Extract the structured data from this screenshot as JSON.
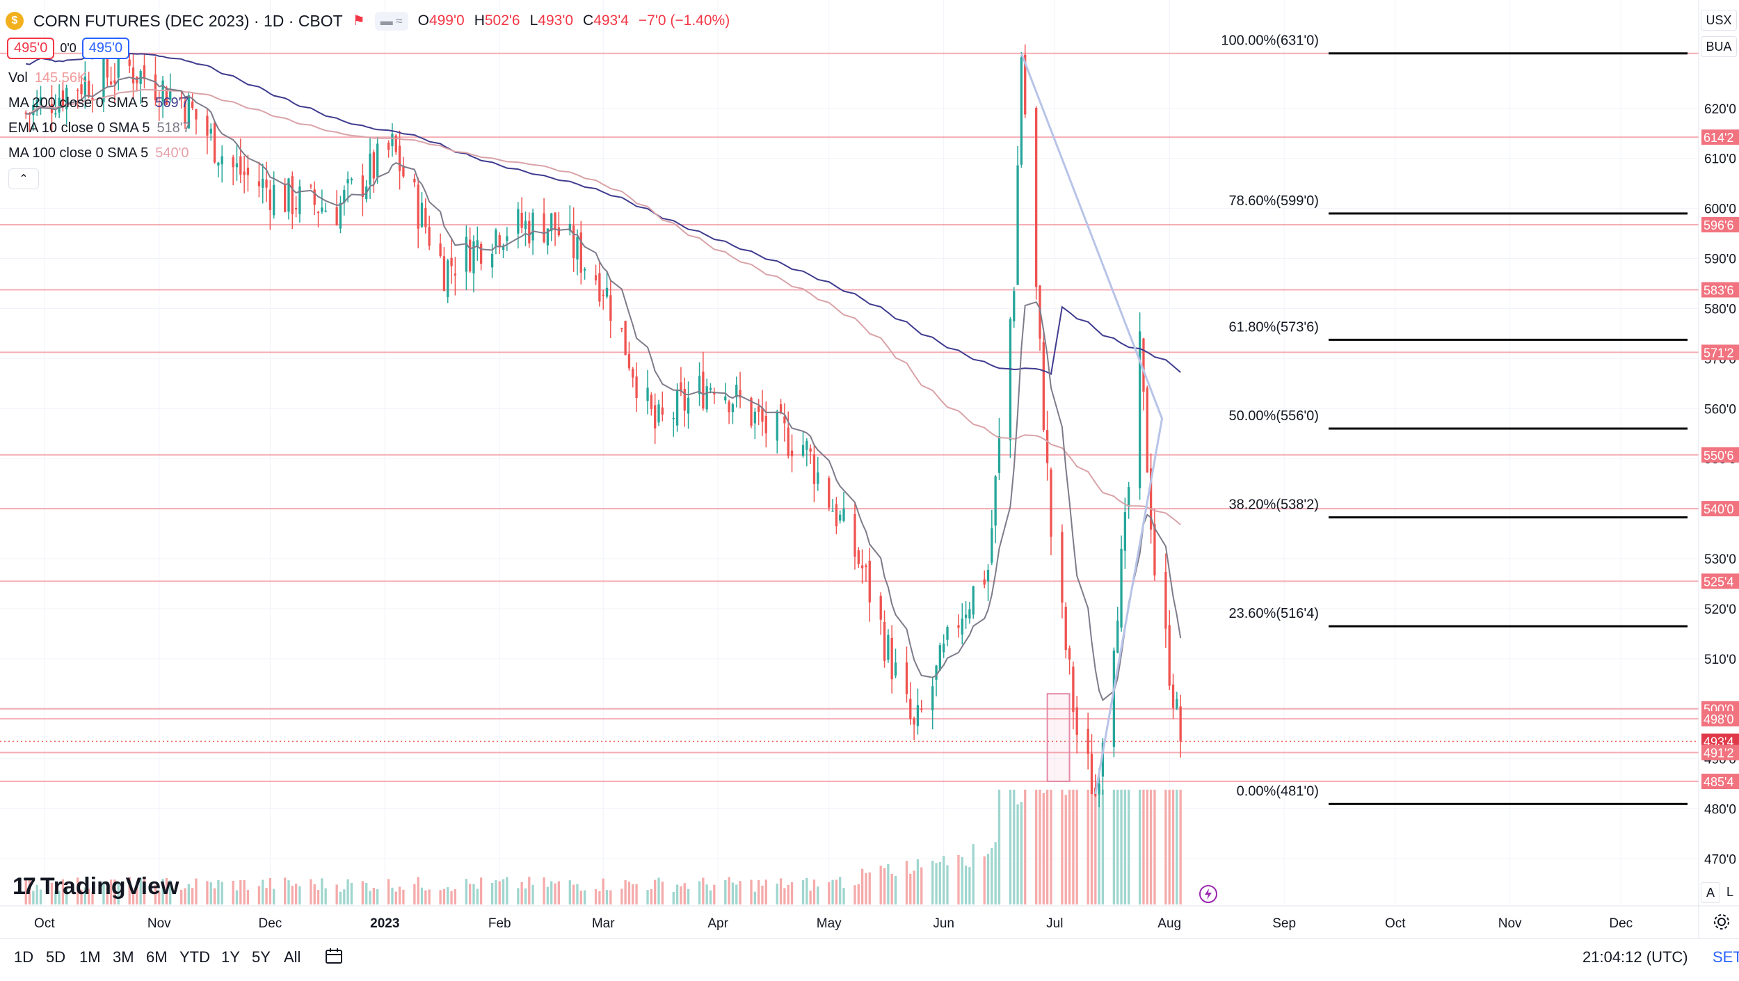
{
  "header": {
    "coin_glyph": "$",
    "symbol": "CORN FUTURES (DEC 2023) · 1D · CBOT",
    "ohlc": [
      {
        "k": "O",
        "v": "499'0"
      },
      {
        "k": "H",
        "v": "502'6"
      },
      {
        "k": "L",
        "v": "493'0"
      },
      {
        "k": "C",
        "v": "493'4"
      },
      {
        "k": "",
        "v": "−7'0 (−1.40%)"
      }
    ],
    "sell_price": "495'0",
    "spread": "0'0",
    "buy_price": "495'0"
  },
  "indicators": [
    {
      "label": "Vol",
      "value": "145.56K",
      "color": "#ef9a9a"
    },
    {
      "label": "MA 200 close 0 SMA 5",
      "value": "569'7",
      "color": "#3f3c8f"
    },
    {
      "label": "EMA 10 close 0 SMA 5",
      "value": "518'7",
      "color": "#7e7b8a"
    },
    {
      "label": "MA 100 close 0 SMA 5",
      "value": "540'0",
      "color": "#e6a0a8"
    }
  ],
  "brand": {
    "mark": "17",
    "name": "TradingView"
  },
  "bottom_bar": {
    "timeframes": [
      "1D",
      "5D",
      "1M",
      "3M",
      "6M",
      "YTD",
      "1Y",
      "5Y",
      "All"
    ],
    "clock": "21:04:12 (UTC)",
    "settings": "SET"
  },
  "axis_buttons": {
    "currency": "USX",
    "mode": "BUA",
    "auto": "A",
    "log": "L"
  },
  "colors": {
    "up": "#26a69a",
    "down": "#ef5350",
    "level": "#f28b95",
    "fib": "#000000",
    "ma200": "#3f3c8f",
    "ma100": "#d9a3a8",
    "ema10": "#7e7b8a",
    "trend": "#b8c4e8"
  },
  "chart_data": {
    "type": "candlestick",
    "instrument": "CORN FUTURES (DEC 2023)",
    "interval": "1D",
    "ylim": [
      462,
      640
    ],
    "y_ticks": [
      "620'0",
      "610'0",
      "600'0",
      "590'0",
      "580'0",
      "570'0",
      "560'0",
      "550'0",
      "540'0",
      "530'0",
      "520'0",
      "510'0",
      "500'0",
      "490'0",
      "480'0",
      "470'0"
    ],
    "x_ticks": [
      "Oct",
      "Nov",
      "Dec",
      "2023",
      "Feb",
      "Mar",
      "Apr",
      "May",
      "Jun",
      "Jul",
      "Aug",
      "Sep",
      "Oct",
      "Nov",
      "Dec"
    ],
    "price_level_labels": [
      {
        "label": "614'2",
        "value": 614.25
      },
      {
        "label": "596'6",
        "value": 596.75
      },
      {
        "label": "583'6",
        "value": 583.75
      },
      {
        "label": "571'2",
        "value": 571.25
      },
      {
        "label": "550'6",
        "value": 550.75
      },
      {
        "label": "540'0",
        "value": 540.0
      },
      {
        "label": "525'4",
        "value": 525.5
      },
      {
        "label": "500'0",
        "value": 500.0
      },
      {
        "label": "498'0",
        "value": 498.0
      },
      {
        "label": "493'4",
        "value": 493.5
      },
      {
        "label": "491'2",
        "value": 491.25
      },
      {
        "label": "485'4",
        "value": 485.5
      }
    ],
    "horizontal_levels": [
      631.0,
      614.25,
      596.75,
      583.75,
      571.25,
      550.75,
      540.0,
      525.5,
      500.0,
      498.0,
      491.25,
      485.5
    ],
    "last_price": 493.5,
    "fibonacci": [
      {
        "label": "100.00%(631'0)",
        "value": 631.0
      },
      {
        "label": "78.60%(599'0)",
        "value": 599.0
      },
      {
        "label": "61.80%(573'6)",
        "value": 573.75
      },
      {
        "label": "50.00%(556'0)",
        "value": 556.0
      },
      {
        "label": "38.20%(538'2)",
        "value": 538.25
      },
      {
        "label": "23.60%(516'4)",
        "value": 516.5
      },
      {
        "label": "0.00%(481'0)",
        "value": 481.0
      }
    ],
    "price_waypoints": [
      {
        "date": "2022-09-26",
        "price": 619
      },
      {
        "date": "2022-10-10",
        "price": 625
      },
      {
        "date": "2022-10-24",
        "price": 628
      },
      {
        "date": "2022-11-07",
        "price": 622
      },
      {
        "date": "2022-11-21",
        "price": 608
      },
      {
        "date": "2022-12-05",
        "price": 602
      },
      {
        "date": "2022-12-19",
        "price": 600
      },
      {
        "date": "2023-01-03",
        "price": 612
      },
      {
        "date": "2023-01-17",
        "price": 588
      },
      {
        "date": "2023-02-01",
        "price": 596
      },
      {
        "date": "2023-02-15",
        "price": 597
      },
      {
        "date": "2023-03-01",
        "price": 585
      },
      {
        "date": "2023-03-15",
        "price": 556
      },
      {
        "date": "2023-03-31",
        "price": 566
      },
      {
        "date": "2023-04-14",
        "price": 556
      },
      {
        "date": "2023-04-24",
        "price": 553
      },
      {
        "date": "2023-05-10",
        "price": 528
      },
      {
        "date": "2023-05-24",
        "price": 495
      },
      {
        "date": "2023-06-06",
        "price": 520
      },
      {
        "date": "2023-06-13",
        "price": 528
      },
      {
        "date": "2023-06-20",
        "price": 586
      },
      {
        "date": "2023-06-22",
        "price": 631
      },
      {
        "date": "2023-06-30",
        "price": 535
      },
      {
        "date": "2023-07-07",
        "price": 495
      },
      {
        "date": "2023-07-12",
        "price": 483
      },
      {
        "date": "2023-07-20",
        "price": 535
      },
      {
        "date": "2023-07-24",
        "price": 571
      },
      {
        "date": "2023-07-28",
        "price": 528
      },
      {
        "date": "2023-08-04",
        "price": 493.5
      }
    ],
    "x_range": [
      "2022-09-19",
      "2023-12-22"
    ],
    "last_date": "2023-08-04"
  }
}
